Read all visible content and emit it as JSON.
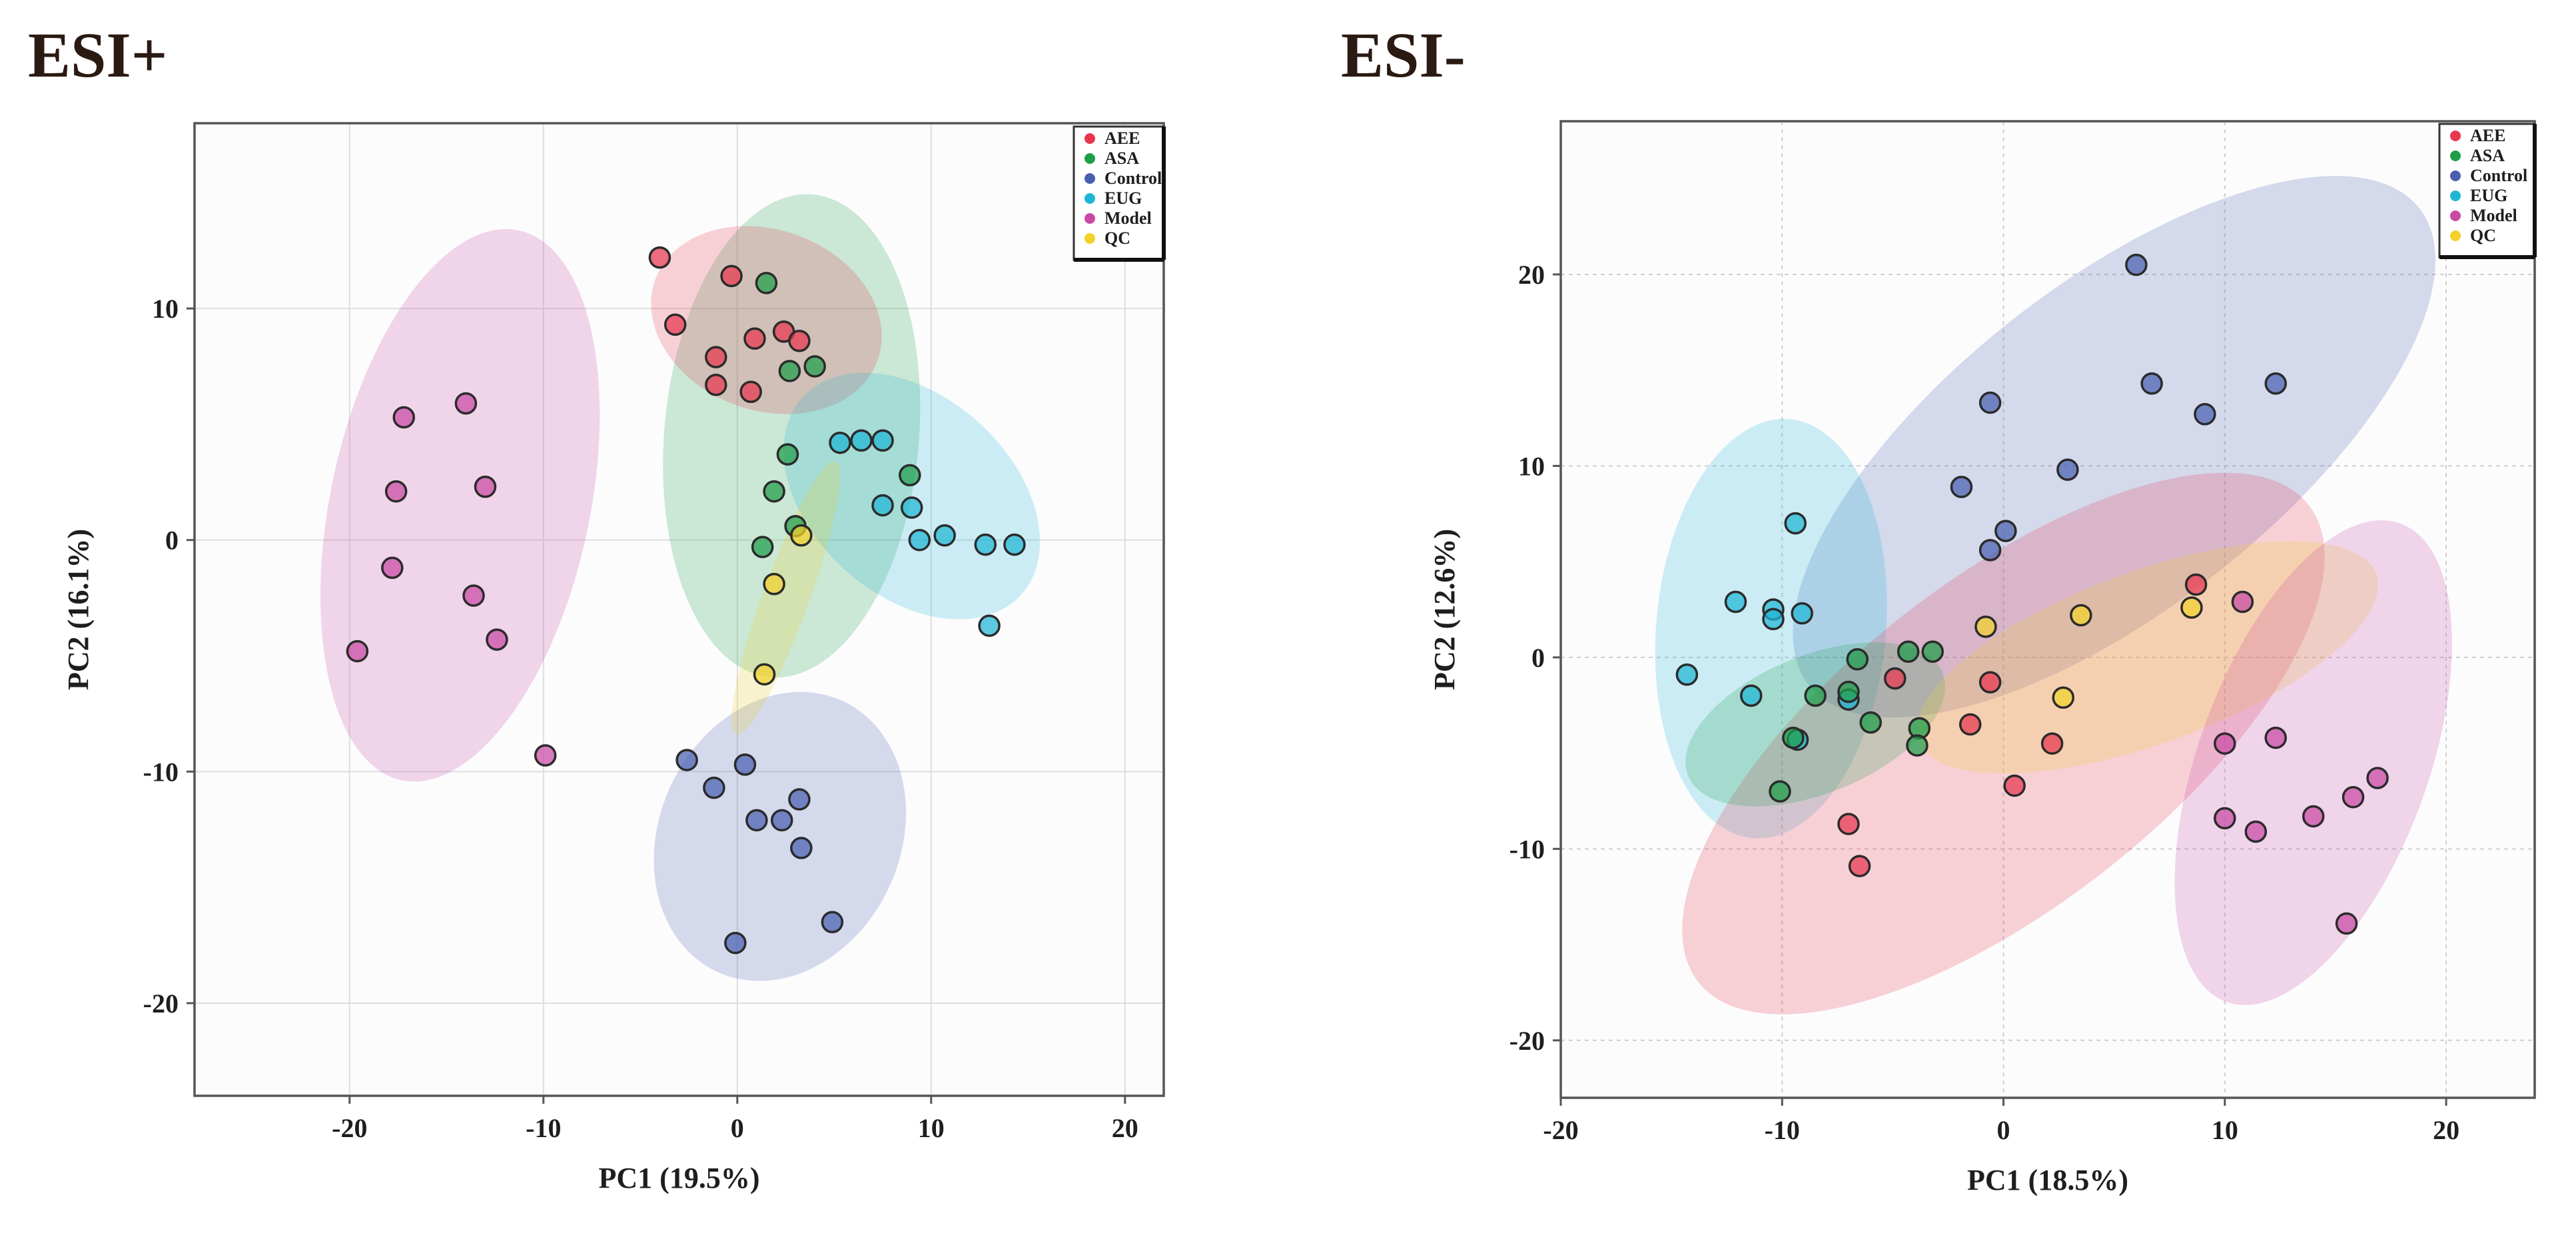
{
  "figure": {
    "colors": {
      "AEE": "#e8364f",
      "ASA": "#1f9e4a",
      "Control": "#4a5fb0",
      "EUG": "#1fb6d6",
      "Model": "#c94aa5",
      "QC": "#f2d12b"
    }
  },
  "chart_data": [
    {
      "type": "scatter",
      "title": "ESI+",
      "xlabel": "PC1 (19.5%)",
      "ylabel": "PC2 (16.1%)",
      "xlim": [
        -28,
        22
      ],
      "ylim": [
        -24,
        18
      ],
      "xticks": [
        -20,
        -10,
        0,
        10,
        20
      ],
      "yticks": [
        -20,
        -10,
        0,
        10
      ],
      "xtick_labels": [
        "-20",
        "-10",
        "0",
        "10",
        "20"
      ],
      "ytick_labels": [
        "-20",
        "-10",
        "0",
        "10"
      ],
      "grid": "solid",
      "legend": [
        "AEE",
        "ASA",
        "Control",
        "EUG",
        "Model",
        "QC"
      ],
      "legend_position": "top-right",
      "series": [
        {
          "name": "Model",
          "ellipse": {
            "cx": -14.3,
            "cy": 1.5,
            "rx": 14.5,
            "ry": 5.6,
            "angle": 78
          },
          "points": [
            [
              -14,
              5.9
            ],
            [
              -17.2,
              5.3
            ],
            [
              -17.6,
              2.1
            ],
            [
              -13,
              2.3
            ],
            [
              -17.8,
              -1.2
            ],
            [
              -13.6,
              -2.4
            ],
            [
              -12.4,
              -4.3
            ],
            [
              -19.6,
              -4.8
            ],
            [
              -9.9,
              -9.3
            ]
          ]
        },
        {
          "name": "ASA",
          "ellipse": {
            "cx": 2.8,
            "cy": 4.5,
            "rx": 12.5,
            "ry": 5.5,
            "angle": 85
          },
          "points": [
            [
              1.5,
              11.1
            ],
            [
              4,
              7.5
            ],
            [
              2.7,
              7.3
            ],
            [
              2.6,
              3.7
            ],
            [
              1.9,
              2.1
            ],
            [
              3,
              0.6
            ],
            [
              1.3,
              -0.3
            ],
            [
              8.9,
              2.8
            ]
          ]
        },
        {
          "name": "AEE",
          "ellipse": {
            "cx": 1.5,
            "cy": 9.5,
            "rx": 6.1,
            "ry": 3.9,
            "angle": -20
          },
          "points": [
            [
              -4,
              12.2
            ],
            [
              -0.3,
              11.4
            ],
            [
              -3.2,
              9.3
            ],
            [
              2.4,
              9
            ],
            [
              0.9,
              8.7
            ],
            [
              3.2,
              8.6
            ],
            [
              -1.1,
              7.9
            ],
            [
              -1.1,
              6.7
            ],
            [
              0.7,
              6.4
            ]
          ]
        },
        {
          "name": "EUG",
          "ellipse": {
            "cx": 9,
            "cy": 1.9,
            "rx": 7.6,
            "ry": 4.3,
            "angle": -42
          },
          "points": [
            [
              5.3,
              4.2
            ],
            [
              6.4,
              4.3
            ],
            [
              7.5,
              4.3
            ],
            [
              7.5,
              1.5
            ],
            [
              9,
              1.4
            ],
            [
              10.7,
              0.2
            ],
            [
              9.4,
              0
            ],
            [
              12.8,
              -0.2
            ],
            [
              14.3,
              -0.2
            ],
            [
              13,
              -3.7
            ]
          ]
        },
        {
          "name": "Control",
          "ellipse": {
            "cx": 2.2,
            "cy": -12.8,
            "rx": 7.7,
            "ry": 5.2,
            "angle": 65
          },
          "points": [
            [
              -2.6,
              -9.5
            ],
            [
              0.4,
              -9.7
            ],
            [
              -1.2,
              -10.7
            ],
            [
              3.2,
              -11.2
            ],
            [
              1,
              -12.1
            ],
            [
              2.3,
              -12.1
            ],
            [
              3.3,
              -13.3
            ],
            [
              4.9,
              -16.5
            ],
            [
              -0.1,
              -17.4
            ]
          ]
        },
        {
          "name": "QC",
          "ellipse": {
            "cx": 2.5,
            "cy": -2.5,
            "rx": 7.5,
            "ry": 1.0,
            "angle": 70
          },
          "points": [
            [
              3.3,
              0.2
            ],
            [
              1.9,
              -1.9
            ],
            [
              1.4,
              -5.8
            ]
          ]
        }
      ]
    },
    {
      "type": "scatter",
      "title": "ESI-",
      "xlabel": "PC1 (18.5%)",
      "ylabel": "PC2 (12.6%)",
      "xlim": [
        -20,
        24
      ],
      "ylim": [
        -23,
        28
      ],
      "xticks": [
        -20,
        -10,
        0,
        10,
        20
      ],
      "yticks": [
        -20,
        -10,
        0,
        10,
        20
      ],
      "xtick_labels": [
        "-20",
        "-10",
        "0",
        "10",
        "20"
      ],
      "ytick_labels": [
        "-20",
        "-10",
        "0",
        "10",
        "20"
      ],
      "grid": "dashed",
      "legend": [
        "AEE",
        "ASA",
        "Control",
        "EUG",
        "Model",
        "QC"
      ],
      "legend_position": "top-right",
      "series": [
        {
          "name": "Control",
          "ellipse": {
            "cx": 5,
            "cy": 11,
            "rx": 17.5,
            "ry": 8.5,
            "angle": 38
          },
          "points": [
            [
              6,
              20.5
            ],
            [
              -0.6,
              13.3
            ],
            [
              6.7,
              14.3
            ],
            [
              9.1,
              12.7
            ],
            [
              12.3,
              14.3
            ],
            [
              2.9,
              9.8
            ],
            [
              -1.9,
              8.9
            ],
            [
              0.1,
              6.6
            ],
            [
              -0.6,
              5.6
            ]
          ]
        },
        {
          "name": "EUG",
          "ellipse": {
            "cx": -10.5,
            "cy": 1.5,
            "rx": 9.5,
            "ry": 6,
            "angle": 85
          },
          "points": [
            [
              -9.4,
              7
            ],
            [
              -12.1,
              2.9
            ],
            [
              -10.4,
              2.5
            ],
            [
              -10.4,
              2
            ],
            [
              -9.1,
              2.3
            ],
            [
              -14.3,
              -0.9
            ],
            [
              -11.4,
              -2
            ],
            [
              -7,
              -2.2
            ],
            [
              -9.3,
              -4.3
            ]
          ]
        },
        {
          "name": "AEE",
          "ellipse": {
            "cx": 0,
            "cy": -4.5,
            "rx": 17.5,
            "ry": 8.5,
            "angle": 38
          },
          "points": [
            [
              8.7,
              3.8
            ],
            [
              -4.9,
              -1.1
            ],
            [
              -0.6,
              -1.3
            ],
            [
              -1.5,
              -3.5
            ],
            [
              2.2,
              -4.5
            ],
            [
              0.5,
              -6.7
            ],
            [
              -7,
              -8.7
            ],
            [
              -6.5,
              -10.9
            ]
          ]
        },
        {
          "name": "ASA",
          "ellipse": {
            "cx": -8.5,
            "cy": -3.5,
            "rx": 6.2,
            "ry": 3.6,
            "angle": 22
          },
          "points": [
            [
              -3.2,
              0.3
            ],
            [
              -6.6,
              -0.1
            ],
            [
              -4.3,
              0.3
            ],
            [
              -8.5,
              -2.0
            ],
            [
              -7,
              -1.8
            ],
            [
              -6,
              -3.4
            ],
            [
              -3.8,
              -3.7
            ],
            [
              -3.9,
              -4.6
            ],
            [
              -9.5,
              -4.2
            ],
            [
              -10.1,
              -7
            ]
          ]
        },
        {
          "name": "QC",
          "ellipse": {
            "cx": 6.5,
            "cy": 0,
            "rx": 11,
            "ry": 4.5,
            "angle": 20
          },
          "points": [
            [
              3.5,
              2.2
            ],
            [
              8.5,
              2.6
            ],
            [
              2.7,
              -2.1
            ],
            [
              -0.8,
              1.6
            ]
          ]
        },
        {
          "name": "Model",
          "ellipse": {
            "cx": 14,
            "cy": -5.5,
            "rx": 11.5,
            "ry": 6,
            "angle": 70
          },
          "points": [
            [
              10.8,
              2.9
            ],
            [
              10,
              -4.5
            ],
            [
              12.3,
              -4.2
            ],
            [
              16.9,
              -6.3
            ],
            [
              15.8,
              -7.3
            ],
            [
              10,
              -8.4
            ],
            [
              14,
              -8.3
            ],
            [
              11.4,
              -9.1
            ],
            [
              15.5,
              -13.9
            ]
          ]
        }
      ]
    }
  ]
}
